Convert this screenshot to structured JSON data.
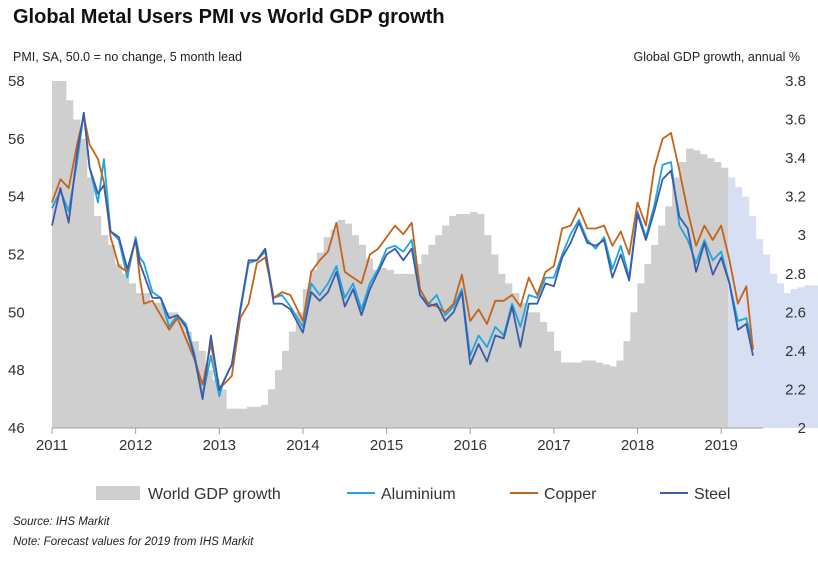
{
  "header": {
    "title": "Global Metal Users PMI vs World GDP growth",
    "left_axis_note": "PMI, SA, 50.0 = no change, 5 month lead",
    "right_axis_note": "Global GDP growth, annual %"
  },
  "footer": {
    "source": "Source: IHS Markit",
    "note": "Note: Forecast values for 2019 from IHS Markit"
  },
  "colors": {
    "gdp_bar": "#cfcfcf",
    "forecast_bar": "#d6e0f2",
    "aluminium": "#1fa6de",
    "copper": "#c5631a",
    "steel": "#3c5ba8",
    "axis": "#a0a0a0",
    "text": "#333333"
  },
  "chart_data": {
    "type": "line",
    "x_axis": {
      "label": "",
      "range": [
        2011.0,
        2019.5
      ],
      "ticks": [
        "2011",
        "2012",
        "2013",
        "2014",
        "2015",
        "2016",
        "2017",
        "2018",
        "2019"
      ]
    },
    "y_left": {
      "label": "PMI, SA, 50.0 = no change, 5 month lead",
      "range": [
        46,
        58
      ],
      "ticks": [
        "46",
        "48",
        "50",
        "52",
        "54",
        "56",
        "58"
      ]
    },
    "y_right": {
      "label": "Global GDP growth, annual %",
      "range": [
        2.0,
        3.8
      ],
      "ticks": [
        "2",
        "2.2",
        "2.4",
        "2.6",
        "2.8",
        "3",
        "3.2",
        "3.4",
        "3.6",
        "3.8"
      ]
    },
    "grid": false,
    "legend_position": "bottom",
    "legend": [
      "World GDP growth",
      "Aluminium",
      "Copper",
      "Steel"
    ],
    "gdp_growth": {
      "name": "World GDP growth",
      "type": "bar",
      "axis": "right",
      "x_start": 2011.0,
      "step": 0.0833,
      "forecast_from_year": 2019.0,
      "values": [
        3.8,
        3.8,
        3.7,
        3.6,
        3.5,
        3.3,
        3.1,
        3.0,
        2.95,
        2.85,
        2.8,
        2.75,
        2.7,
        2.7,
        2.65,
        2.65,
        2.6,
        2.6,
        2.55,
        2.5,
        2.45,
        2.4,
        2.3,
        2.25,
        2.2,
        2.1,
        2.1,
        2.1,
        2.11,
        2.11,
        2.12,
        2.2,
        2.3,
        2.4,
        2.5,
        2.6,
        2.72,
        2.82,
        2.91,
        2.99,
        3.03,
        3.08,
        3.06,
        3.0,
        2.95,
        2.88,
        2.82,
        2.83,
        2.82,
        2.8,
        2.8,
        2.8,
        2.85,
        2.9,
        2.95,
        3.0,
        3.05,
        3.1,
        3.11,
        3.11,
        3.12,
        3.11,
        3.0,
        2.9,
        2.8,
        2.75,
        2.7,
        2.65,
        2.6,
        2.6,
        2.55,
        2.5,
        2.4,
        2.34,
        2.34,
        2.34,
        2.35,
        2.35,
        2.34,
        2.33,
        2.32,
        2.35,
        2.45,
        2.6,
        2.75,
        2.85,
        2.95,
        3.05,
        3.15,
        3.3,
        3.38,
        3.45,
        3.44,
        3.42,
        3.4,
        3.38,
        3.35,
        3.3,
        3.25,
        3.2,
        3.1,
        2.98,
        2.9,
        2.8,
        2.75,
        2.7,
        2.72,
        2.73,
        2.74,
        2.74,
        2.74,
        2.74,
        2.73,
        2.72,
        2.71,
        2.7,
        2.69
      ]
    },
    "series": [
      {
        "name": "Aluminium",
        "x": [
          2011.0,
          2011.1,
          2011.2,
          2011.3,
          2011.38,
          2011.45,
          2011.55,
          2011.62,
          2011.7,
          2011.8,
          2011.9,
          2012.0,
          2012.05,
          2012.1,
          2012.2,
          2012.3,
          2012.4,
          2012.5,
          2012.6,
          2012.7,
          2012.8,
          2012.9,
          2013.0,
          2013.05,
          2013.15,
          2013.25,
          2013.35,
          2013.45,
          2013.55,
          2013.65,
          2013.75,
          2013.85,
          2014.0,
          2014.1,
          2014.2,
          2014.3,
          2014.4,
          2014.5,
          2014.6,
          2014.7,
          2014.8,
          2014.9,
          2015.0,
          2015.1,
          2015.2,
          2015.3,
          2015.4,
          2015.5,
          2015.6,
          2015.7,
          2015.8,
          2015.9,
          2016.0,
          2016.1,
          2016.2,
          2016.3,
          2016.4,
          2016.5,
          2016.6,
          2016.7,
          2016.8,
          2016.9,
          2017.0,
          2017.1,
          2017.2,
          2017.3,
          2017.4,
          2017.5,
          2017.6,
          2017.7,
          2017.8,
          2017.9,
          2018.0,
          2018.1,
          2018.2,
          2018.3,
          2018.4,
          2018.5,
          2018.6,
          2018.7,
          2018.8,
          2018.9,
          2019.0,
          2019.1,
          2019.2,
          2019.3,
          2019.38
        ],
        "values": [
          53.6,
          54.2,
          53.5,
          55.2,
          56.9,
          55.0,
          53.8,
          55.3,
          52.8,
          52.5,
          51.2,
          52.6,
          51.9,
          51.7,
          50.7,
          50.5,
          49.5,
          49.9,
          49.6,
          48.6,
          47.1,
          48.5,
          47.1,
          47.6,
          48.2,
          50.0,
          51.7,
          51.8,
          52.1,
          50.5,
          50.6,
          50.2,
          49.5,
          51.0,
          50.6,
          51.0,
          51.6,
          50.5,
          51.0,
          50.1,
          51.0,
          51.5,
          52.2,
          52.3,
          52.1,
          52.5,
          50.6,
          50.3,
          50.6,
          49.9,
          50.2,
          50.8,
          48.5,
          49.2,
          48.8,
          49.5,
          49.2,
          50.3,
          49.5,
          50.6,
          50.5,
          51.2,
          51.2,
          52.0,
          52.7,
          53.2,
          52.5,
          52.2,
          52.6,
          51.5,
          52.3,
          51.2,
          53.5,
          52.6,
          53.7,
          55.1,
          55.2,
          53.0,
          52.5,
          51.7,
          52.5,
          51.8,
          52.1,
          51.0,
          49.7,
          49.8,
          48.8
        ]
      },
      {
        "name": "Copper",
        "x": [
          2011.0,
          2011.1,
          2011.2,
          2011.3,
          2011.38,
          2011.45,
          2011.55,
          2011.62,
          2011.7,
          2011.8,
          2011.9,
          2012.0,
          2012.05,
          2012.1,
          2012.2,
          2012.3,
          2012.4,
          2012.5,
          2012.6,
          2012.7,
          2012.8,
          2012.9,
          2013.0,
          2013.05,
          2013.15,
          2013.25,
          2013.35,
          2013.45,
          2013.55,
          2013.65,
          2013.75,
          2013.85,
          2014.0,
          2014.1,
          2014.2,
          2014.3,
          2014.4,
          2014.5,
          2014.6,
          2014.7,
          2014.8,
          2014.9,
          2015.0,
          2015.1,
          2015.2,
          2015.3,
          2015.4,
          2015.5,
          2015.6,
          2015.7,
          2015.8,
          2015.9,
          2016.0,
          2016.1,
          2016.2,
          2016.3,
          2016.4,
          2016.5,
          2016.6,
          2016.7,
          2016.8,
          2016.9,
          2017.0,
          2017.1,
          2017.2,
          2017.3,
          2017.4,
          2017.5,
          2017.6,
          2017.7,
          2017.8,
          2017.9,
          2018.0,
          2018.1,
          2018.2,
          2018.3,
          2018.4,
          2018.5,
          2018.6,
          2018.7,
          2018.8,
          2018.9,
          2019.0,
          2019.1,
          2019.2,
          2019.3,
          2019.38
        ],
        "values": [
          53.8,
          54.6,
          54.3,
          55.8,
          56.8,
          55.8,
          55.3,
          54.5,
          52.6,
          51.6,
          51.4,
          52.5,
          51.2,
          50.3,
          50.4,
          49.9,
          49.4,
          49.8,
          49.1,
          48.4,
          47.5,
          48.9,
          47.4,
          47.5,
          47.8,
          49.8,
          50.3,
          51.7,
          51.9,
          50.5,
          50.7,
          50.6,
          49.7,
          51.4,
          51.8,
          52.1,
          53.1,
          51.4,
          51.2,
          51.0,
          52.0,
          52.2,
          52.6,
          53.0,
          52.7,
          53.1,
          50.8,
          50.3,
          50.2,
          50.0,
          50.3,
          51.3,
          49.7,
          50.1,
          49.6,
          50.4,
          50.4,
          50.6,
          50.2,
          51.2,
          50.6,
          51.4,
          51.6,
          52.9,
          53.0,
          53.6,
          52.9,
          52.9,
          53.0,
          52.3,
          52.8,
          52.0,
          53.8,
          53.0,
          55.0,
          56.0,
          56.2,
          54.9,
          53.5,
          52.3,
          53.0,
          52.5,
          53.0,
          51.8,
          50.3,
          50.9,
          48.7
        ]
      },
      {
        "name": "Steel",
        "x": [
          2011.0,
          2011.1,
          2011.2,
          2011.3,
          2011.38,
          2011.45,
          2011.55,
          2011.62,
          2011.7,
          2011.8,
          2011.9,
          2012.0,
          2012.05,
          2012.1,
          2012.2,
          2012.3,
          2012.4,
          2012.5,
          2012.6,
          2012.7,
          2012.8,
          2012.9,
          2013.0,
          2013.05,
          2013.15,
          2013.25,
          2013.35,
          2013.45,
          2013.55,
          2013.65,
          2013.75,
          2013.85,
          2014.0,
          2014.1,
          2014.2,
          2014.3,
          2014.4,
          2014.5,
          2014.6,
          2014.7,
          2014.8,
          2014.9,
          2015.0,
          2015.1,
          2015.2,
          2015.3,
          2015.4,
          2015.5,
          2015.6,
          2015.7,
          2015.8,
          2015.9,
          2016.0,
          2016.1,
          2016.2,
          2016.3,
          2016.4,
          2016.5,
          2016.6,
          2016.7,
          2016.8,
          2016.9,
          2017.0,
          2017.1,
          2017.2,
          2017.3,
          2017.4,
          2017.5,
          2017.6,
          2017.7,
          2017.8,
          2017.9,
          2018.0,
          2018.1,
          2018.2,
          2018.3,
          2018.4,
          2018.5,
          2018.6,
          2018.7,
          2018.8,
          2018.9,
          2019.0,
          2019.1,
          2019.2,
          2019.3,
          2019.38
        ],
        "values": [
          53.0,
          54.3,
          53.1,
          55.5,
          56.9,
          55.0,
          54.1,
          54.4,
          52.8,
          52.6,
          51.5,
          52.5,
          51.7,
          51.3,
          50.5,
          50.5,
          49.8,
          49.9,
          49.5,
          48.5,
          47.0,
          49.2,
          47.3,
          47.6,
          48.2,
          50.1,
          51.8,
          51.8,
          52.2,
          50.3,
          50.3,
          50.1,
          49.3,
          50.7,
          50.4,
          50.7,
          51.4,
          50.2,
          50.8,
          49.9,
          50.8,
          51.4,
          52.0,
          52.2,
          51.8,
          52.2,
          50.6,
          50.2,
          50.3,
          49.7,
          50.0,
          50.7,
          48.2,
          48.9,
          48.3,
          49.2,
          49.1,
          50.2,
          48.8,
          50.3,
          50.3,
          51.0,
          50.9,
          51.9,
          52.4,
          53.1,
          52.4,
          52.3,
          52.5,
          51.2,
          52.0,
          51.1,
          53.4,
          52.5,
          53.5,
          54.6,
          54.9,
          53.3,
          52.9,
          51.4,
          52.4,
          51.3,
          51.9,
          51.0,
          49.4,
          49.6,
          48.5
        ]
      }
    ]
  }
}
